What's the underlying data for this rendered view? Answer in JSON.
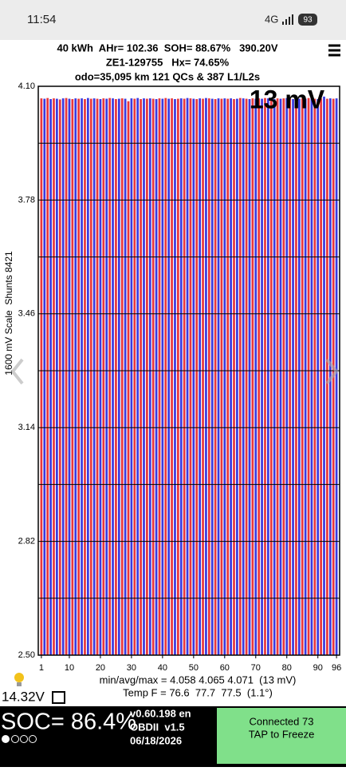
{
  "status_bar": {
    "time": "11:54",
    "network": "4G",
    "battery": "93"
  },
  "header": {
    "line1": "40 kWh  AHr= 102.36  SOH= 88.67%   390.20V",
    "line2": "ZE1-129755   Hx= 74.65%",
    "line3": "odo=35,095 km 121 QCs & 387 L1/L2s"
  },
  "chart_data": {
    "type": "bar",
    "annotation": "13 mV",
    "y_label": "1600 mV Scale  Shunts 8421",
    "x": [
      1,
      2,
      3,
      4,
      5,
      6,
      7,
      8,
      9,
      10,
      11,
      12,
      13,
      14,
      15,
      16,
      17,
      18,
      19,
      20,
      21,
      22,
      23,
      24,
      25,
      26,
      27,
      28,
      29,
      30,
      31,
      32,
      33,
      34,
      35,
      36,
      37,
      38,
      39,
      40,
      41,
      42,
      43,
      44,
      45,
      46,
      47,
      48,
      49,
      50,
      51,
      52,
      53,
      54,
      55,
      56,
      57,
      58,
      59,
      60,
      61,
      62,
      63,
      64,
      65,
      66,
      67,
      68,
      69,
      70,
      71,
      72,
      73,
      74,
      75,
      76,
      77,
      78,
      79,
      80,
      81,
      82,
      83,
      84,
      85,
      86,
      87,
      88,
      89,
      90,
      91,
      92,
      93,
      94,
      95,
      96
    ],
    "values": [
      4.066,
      4.065,
      4.067,
      4.064,
      4.066,
      4.065,
      4.063,
      4.066,
      4.067,
      4.065,
      4.064,
      4.066,
      4.065,
      4.066,
      4.064,
      4.067,
      4.065,
      4.066,
      4.065,
      4.064,
      4.066,
      4.065,
      4.067,
      4.066,
      4.064,
      4.065,
      4.066,
      4.065,
      4.058,
      4.066,
      4.065,
      4.067,
      4.064,
      4.066,
      4.065,
      4.066,
      4.065,
      4.064,
      4.066,
      4.065,
      4.067,
      4.065,
      4.066,
      4.064,
      4.065,
      4.066,
      4.065,
      4.067,
      4.066,
      4.065,
      4.064,
      4.066,
      4.065,
      4.067,
      4.066,
      4.065,
      4.064,
      4.066,
      4.065,
      4.066,
      4.065,
      4.066,
      4.064,
      4.065,
      4.067,
      4.066,
      4.065,
      4.064,
      4.066,
      4.065,
      4.066,
      4.065,
      4.067,
      4.066,
      4.065,
      4.064,
      4.066,
      4.065,
      4.066,
      4.067,
      4.065,
      4.064,
      4.066,
      4.065,
      4.066,
      4.065,
      4.067,
      4.066,
      4.065,
      4.064,
      4.066,
      4.071,
      4.065,
      4.066,
      4.065,
      4.066
    ],
    "colors": [
      "#e8383d",
      "#3a3ae0"
    ],
    "xlim": [
      0,
      97
    ],
    "xticks": [
      1,
      10,
      20,
      30,
      40,
      50,
      60,
      70,
      80,
      90,
      96
    ],
    "ylim": [
      2.5,
      4.1
    ],
    "yticks": [
      {
        "value": 2.5,
        "label": "2.50"
      },
      {
        "value": 2.82,
        "label": "2.82"
      },
      {
        "value": 3.14,
        "label": "3.14"
      },
      {
        "value": 3.46,
        "label": "3.46"
      },
      {
        "value": 3.78,
        "label": "3.78"
      },
      {
        "value": 4.1,
        "label": "4.10"
      }
    ],
    "minor_gridlines": [
      2.66,
      2.98,
      3.3,
      3.62,
      3.94
    ],
    "grid": true
  },
  "footer": {
    "stats": "min/avg/max = 4.058 4.065 4.071  (13 mV)",
    "temp": "Temp F = 76.6  77.7  77.5  (1.1°)",
    "aux_voltage": "14.32V",
    "soc": "SOC= 86.4%",
    "version": "v0.60.198 en",
    "obd": "OBDII  v1.5",
    "date": "06/18/2026",
    "button_line1": "Connected 73",
    "button_line2": "TAP to Freeze"
  }
}
